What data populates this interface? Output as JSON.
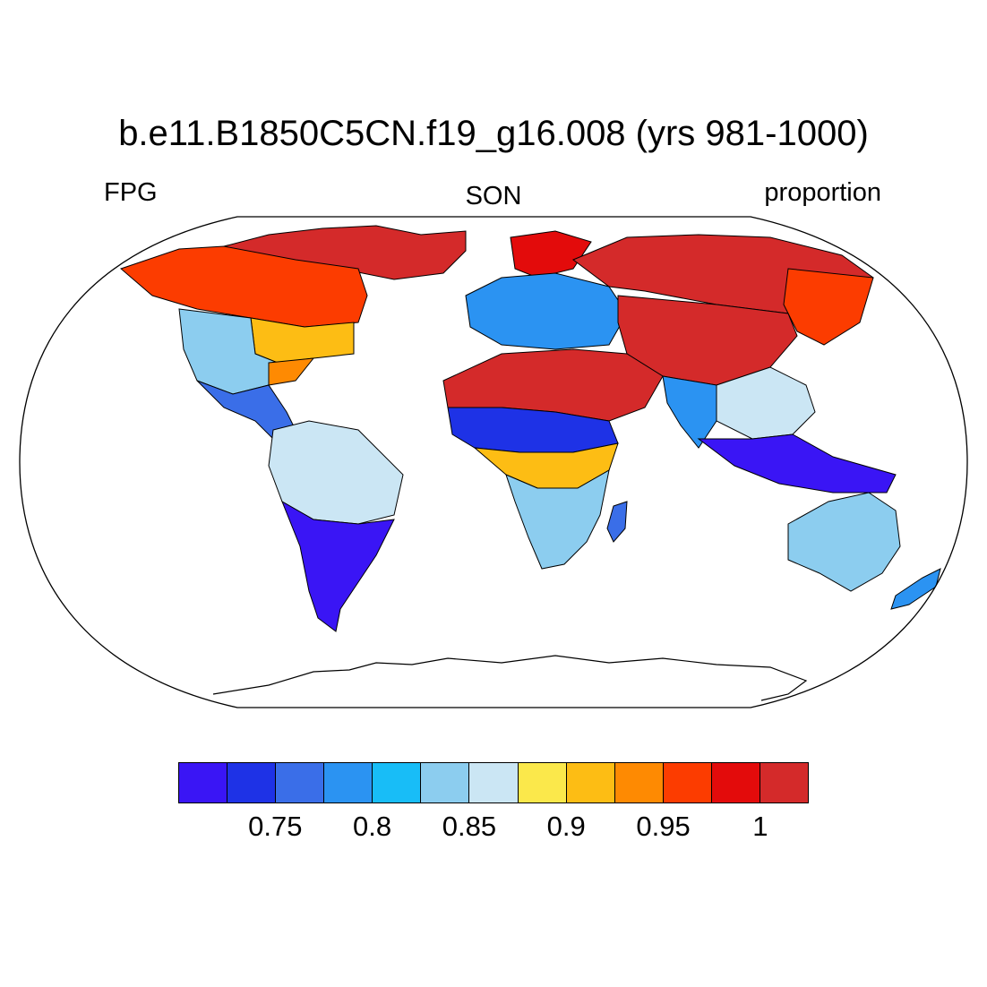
{
  "title": "b.e11.B1850C5CN.f19_g16.008 (yrs 981-1000)",
  "left_label": "FPG",
  "center_label": "SON",
  "right_label": "proportion",
  "colorbar": {
    "colors": [
      "#3a15f5",
      "#1e32e6",
      "#3a6ee8",
      "#2b93f2",
      "#18bdf7",
      "#8ccdef",
      "#cbe6f4",
      "#fbe84b",
      "#fdbd14",
      "#fe8a02",
      "#fc3c00",
      "#e30b0b",
      "#d42a2a"
    ],
    "labels": [
      "0.75",
      "0.8",
      "0.85",
      "0.9",
      "0.95",
      "1"
    ]
  },
  "map": {
    "projection": "Robinson",
    "regions": [
      {
        "name": "Arctic Canada and Greenland",
        "color": "#d42a2a"
      },
      {
        "name": "Canada",
        "color": "#fc3c00"
      },
      {
        "name": "Eastern North America",
        "color": "#fdbd14"
      },
      {
        "name": "Western United States",
        "color": "#8ccdef"
      },
      {
        "name": "Southeastern United States",
        "color": "#fe8a02"
      },
      {
        "name": "Mexico and Central America",
        "color": "#3a6ee8"
      },
      {
        "name": "Northern South America",
        "color": "#cbe6f4"
      },
      {
        "name": "Southern South America",
        "color": "#3a15f5"
      },
      {
        "name": "Scandinavia",
        "color": "#e30b0b"
      },
      {
        "name": "Europe",
        "color": "#2b93f2"
      },
      {
        "name": "Siberia",
        "color": "#d42a2a"
      },
      {
        "name": "Northeast Asia",
        "color": "#fc3c00"
      },
      {
        "name": "Central Asia",
        "color": "#d42a2a"
      },
      {
        "name": "Sahara and Arabia",
        "color": "#d42a2a"
      },
      {
        "name": "Sahel",
        "color": "#2b93f2"
      },
      {
        "name": "Central Africa",
        "color": "#cbe6f4"
      },
      {
        "name": "Southern Africa",
        "color": "#3a15f5"
      },
      {
        "name": "Madagascar",
        "color": "#1e32e6"
      },
      {
        "name": "India",
        "color": "#fdbd14"
      },
      {
        "name": "China",
        "color": "#8ccdef"
      },
      {
        "name": "Southeast Asia",
        "color": "#3a6ee8"
      },
      {
        "name": "Australia",
        "color": "#8ccdef"
      },
      {
        "name": "New Zealand",
        "color": "#2b93f2"
      }
    ]
  }
}
